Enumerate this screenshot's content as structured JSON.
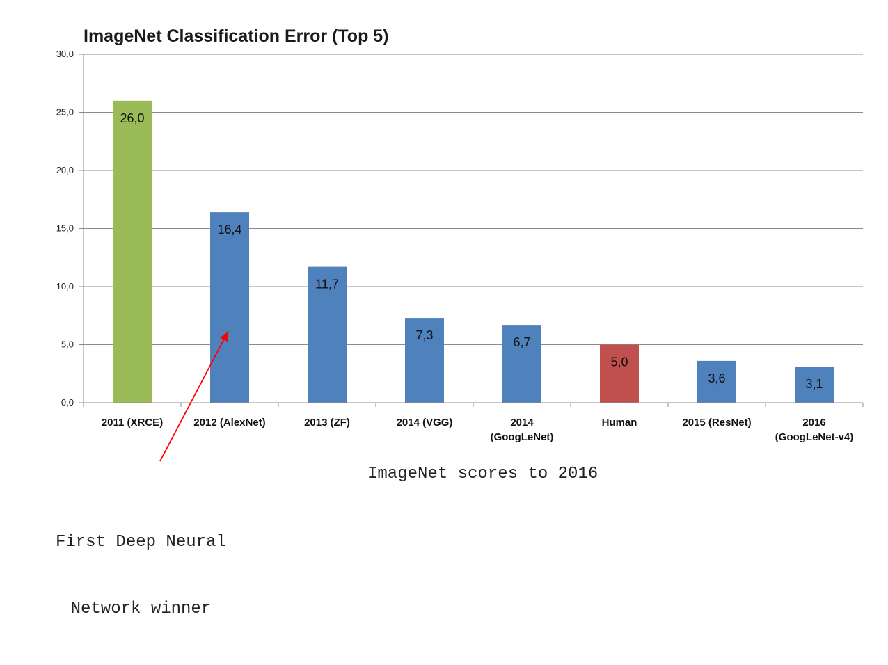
{
  "chart_data": {
    "type": "bar",
    "title": "ImageNet Classification Error (Top 5)",
    "xlabel": "",
    "ylabel": "",
    "ylim": [
      0,
      30
    ],
    "yticks": [
      0,
      5,
      10,
      15,
      20,
      25,
      30
    ],
    "ytick_labels": [
      "0,0",
      "5,0",
      "10,0",
      "15,0",
      "20,0",
      "25,0",
      "30,0"
    ],
    "grid": true,
    "categories": [
      [
        "2011 (XRCE)"
      ],
      [
        "2012 (AlexNet)"
      ],
      [
        "2013 (ZF)"
      ],
      [
        "2014 (VGG)"
      ],
      [
        "2014",
        "(GoogLeNet)"
      ],
      [
        "Human"
      ],
      [
        "2015 (ResNet)"
      ],
      [
        "2016",
        "(GoogLeNet-v4)"
      ]
    ],
    "values": [
      26.0,
      16.4,
      11.7,
      7.3,
      6.7,
      5.0,
      3.6,
      3.1
    ],
    "value_labels": [
      "26,0",
      "16,4",
      "11,7",
      "7,3",
      "6,7",
      "5,0",
      "3,6",
      "3,1"
    ],
    "bar_colors": [
      "#9bbb59",
      "#4f81bd",
      "#4f81bd",
      "#4f81bd",
      "#4f81bd",
      "#c0504d",
      "#4f81bd",
      "#4f81bd"
    ],
    "annotation": {
      "text_lines": [
        "First Deep Neural",
        "Network winner"
      ],
      "points_to_category": "2012 (AlexNet)",
      "arrow_color": "#ff0000"
    }
  },
  "caption": "ImageNet scores to 2016"
}
